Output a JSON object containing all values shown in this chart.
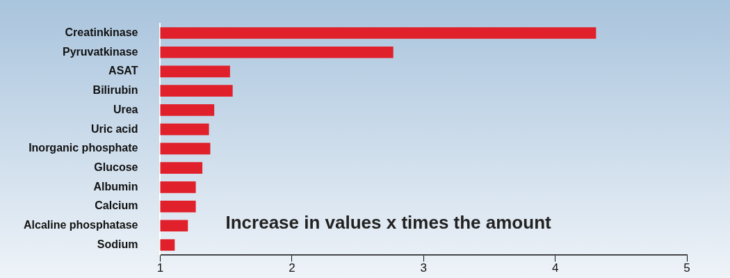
{
  "chart_data": {
    "type": "bar",
    "orientation": "horizontal",
    "categories": [
      "Creatinkinase",
      "Pyruvatkinase",
      "ASAT",
      "Bilirubin",
      "Urea",
      "Uric acid",
      "Inorganic phosphate",
      "Glucose",
      "Albumin",
      "Calcium",
      "Alcaline phosphatase",
      "Sodium"
    ],
    "values": [
      4.31,
      2.77,
      1.53,
      1.55,
      1.41,
      1.37,
      1.38,
      1.32,
      1.27,
      1.27,
      1.21,
      1.11
    ],
    "color": "#e0202a",
    "xlim": [
      1,
      5
    ],
    "xticks": [
      1,
      2,
      3,
      4,
      5
    ],
    "grid": false,
    "legend": false,
    "annotations": [
      "Increase in values x times the amount"
    ]
  }
}
